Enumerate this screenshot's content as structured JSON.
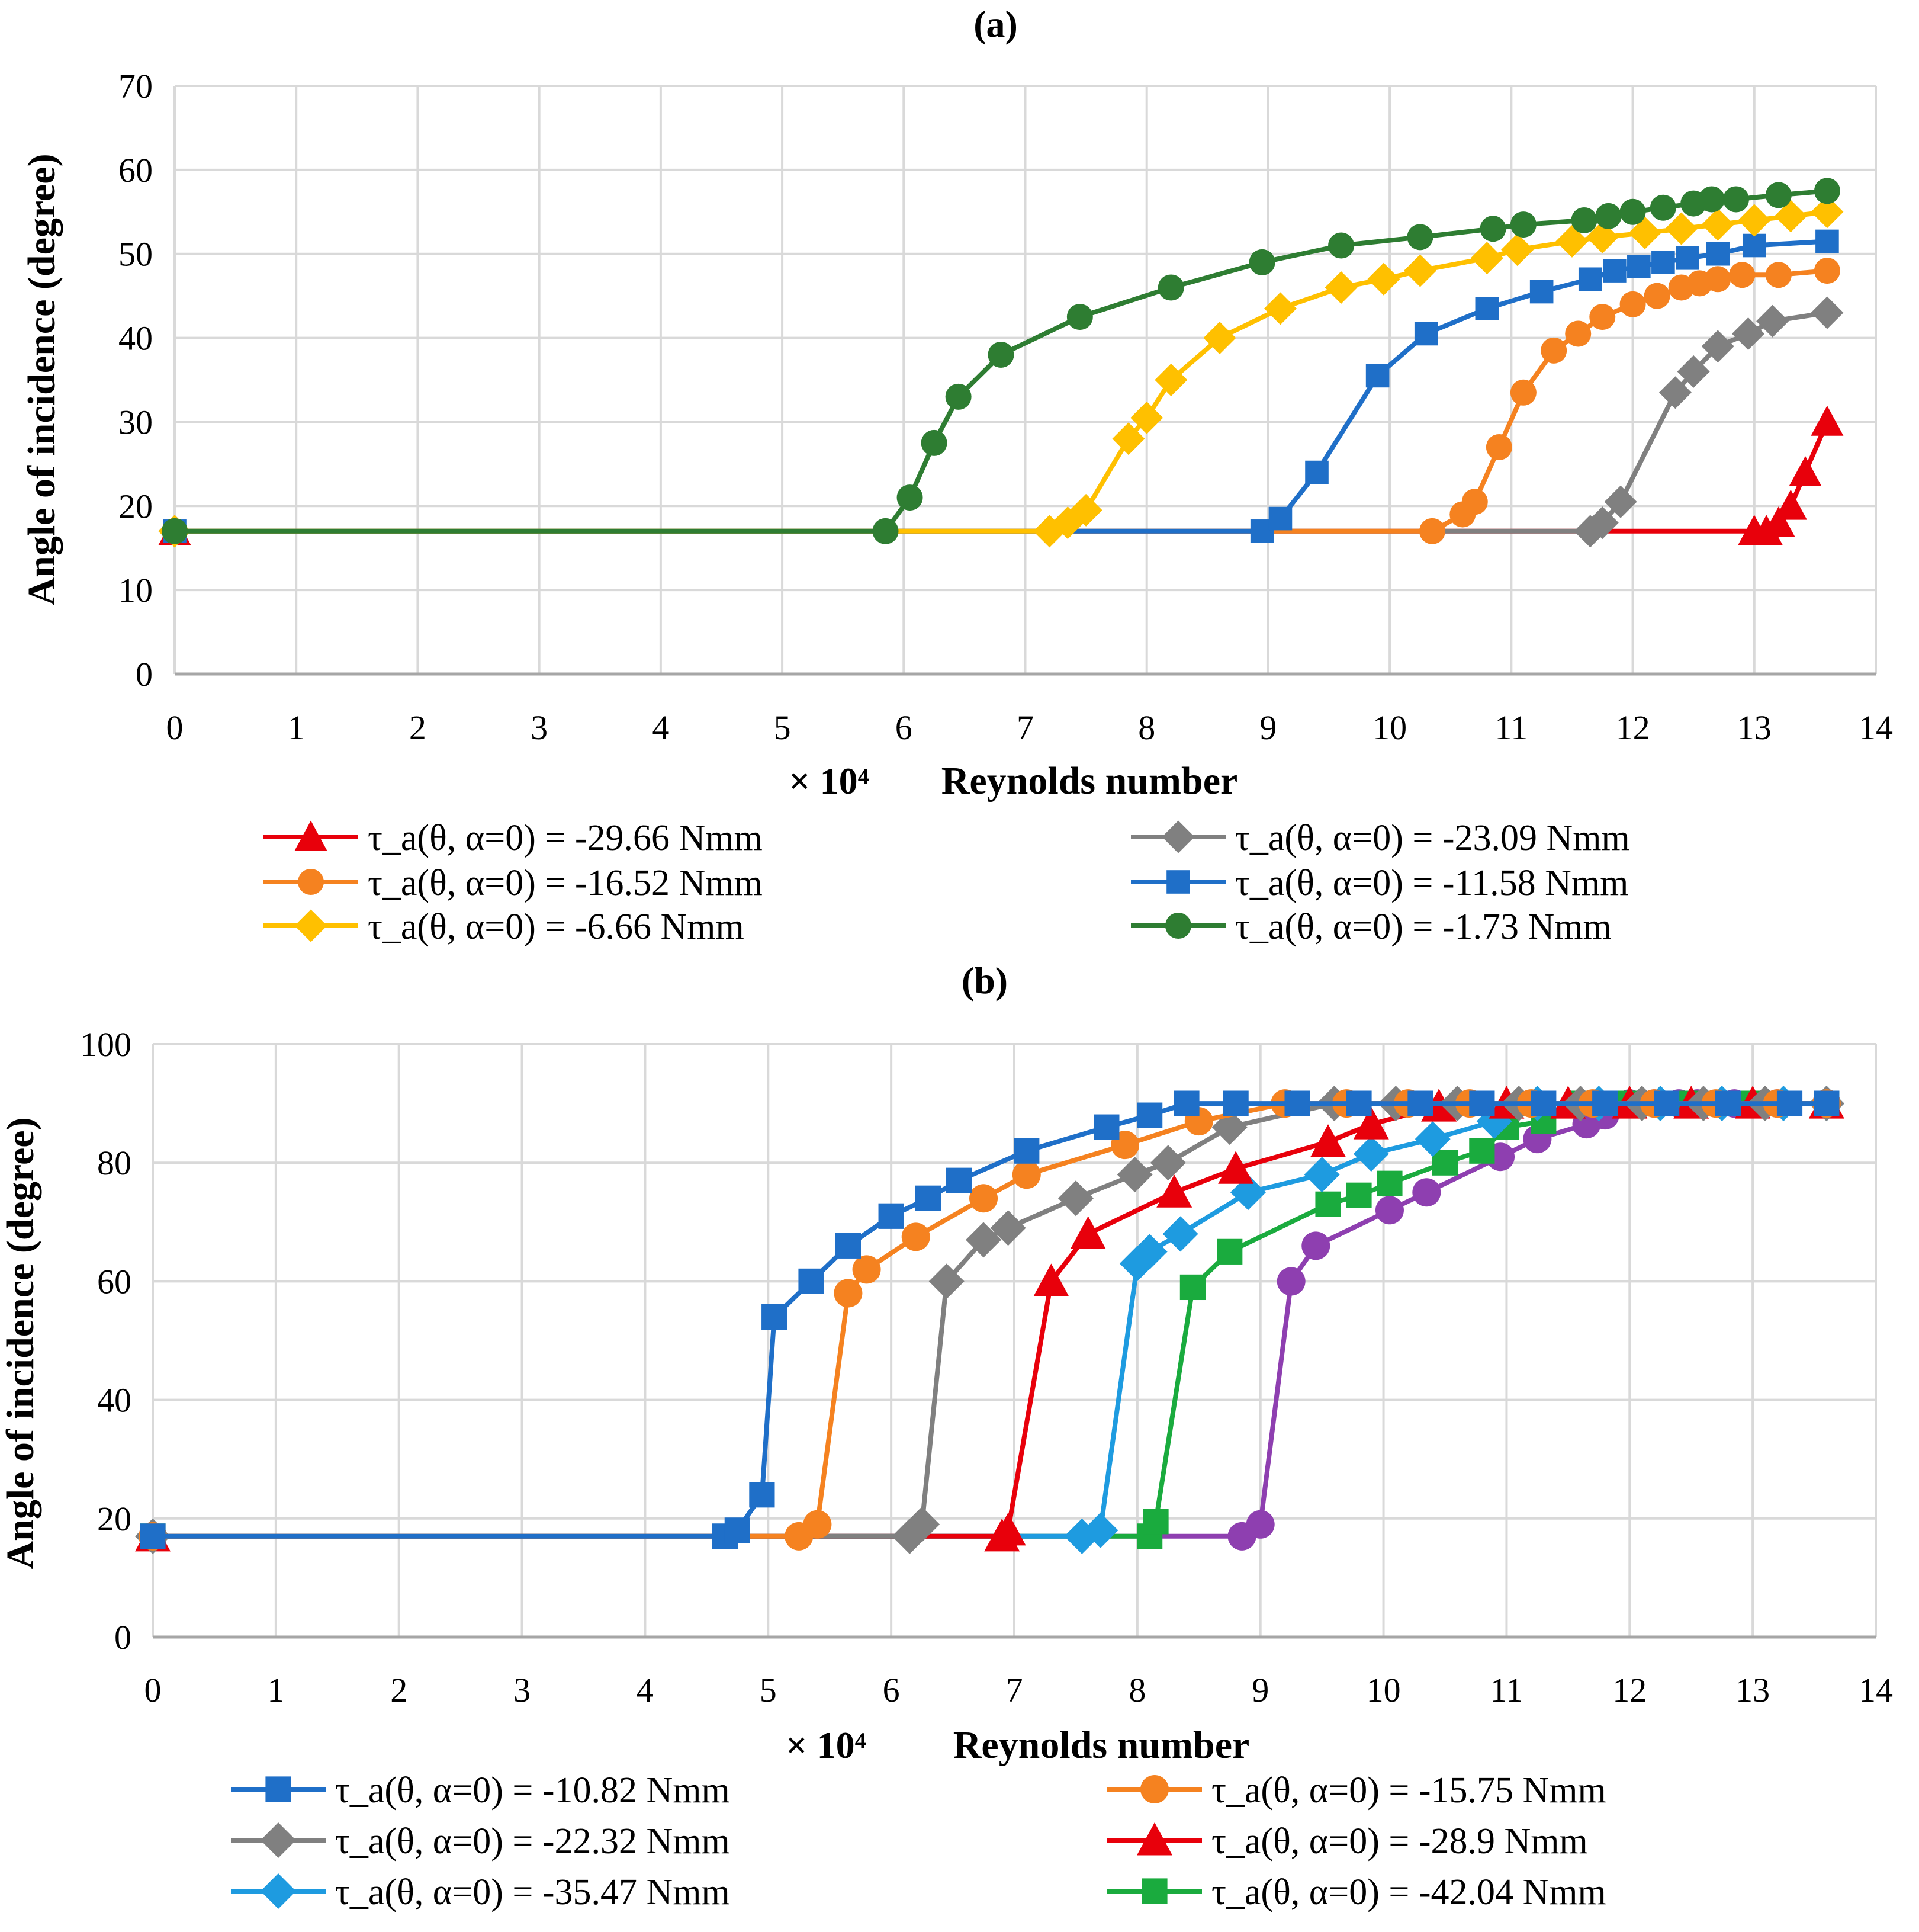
{
  "chart_data": [
    {
      "id": "a",
      "type": "line",
      "panel_label": "(a)",
      "title": "",
      "xlabel": "Reynolds number",
      "xlabel_prefix": "× 10⁴",
      "ylabel": "Angle of incidence (degree)",
      "xlim": [
        0,
        14
      ],
      "ylim": [
        0,
        70
      ],
      "xticks": [
        0,
        1,
        2,
        3,
        4,
        5,
        6,
        7,
        8,
        9,
        10,
        11,
        12,
        13,
        14
      ],
      "yticks": [
        0,
        10,
        20,
        30,
        40,
        50,
        60,
        70
      ],
      "grid": true,
      "legend_position": "bottom",
      "series": [
        {
          "name": "τ_a(θ, α=0) = -29.66 Nmm",
          "color": "#e8000b",
          "marker": "triangle",
          "x": [
            0,
            13.0,
            13.1,
            13.2,
            13.3,
            13.42,
            13.6
          ],
          "y": [
            17,
            17,
            17,
            18,
            20,
            24,
            30
          ]
        },
        {
          "name": "τ_a(θ, α=0) = -23.09 Nmm",
          "color": "#808080",
          "marker": "diamond",
          "x": [
            0,
            11.65,
            11.75,
            11.9,
            12.35,
            12.5,
            12.7,
            12.95,
            13.15,
            13.6
          ],
          "y": [
            17,
            17,
            18,
            20.5,
            33.5,
            36,
            39,
            40.5,
            42,
            43
          ]
        },
        {
          "name": "τ_a(θ, α=0) = -16.52 Nmm",
          "color": "#f58220",
          "marker": "circle",
          "x": [
            0,
            10.35,
            10.6,
            10.7,
            10.9,
            11.1,
            11.35,
            11.55,
            11.75,
            12.0,
            12.2,
            12.4,
            12.55,
            12.7,
            12.9,
            13.2,
            13.6
          ],
          "y": [
            17,
            17,
            19,
            20.5,
            27,
            33.5,
            38.5,
            40.5,
            42.5,
            44,
            45,
            46,
            46.5,
            47,
            47.5,
            47.5,
            48
          ]
        },
        {
          "name": "τ_a(θ, α=0) = -11.58 Nmm",
          "color": "#1f6fc8",
          "marker": "square",
          "x": [
            0,
            8.95,
            9.1,
            9.4,
            9.9,
            10.3,
            10.8,
            11.25,
            11.65,
            11.85,
            12.05,
            12.25,
            12.45,
            12.7,
            13.0,
            13.6
          ],
          "y": [
            17,
            17,
            18.5,
            24,
            35.5,
            40.5,
            43.5,
            45.5,
            47,
            48,
            48.5,
            49,
            49.5,
            50,
            51,
            51.5
          ]
        },
        {
          "name": "τ_a(θ, α=0) = -6.66 Nmm",
          "color": "#ffc000",
          "marker": "diamond",
          "x": [
            0,
            7.2,
            7.35,
            7.5,
            7.85,
            8.0,
            8.2,
            8.6,
            9.1,
            9.6,
            9.95,
            10.25,
            10.8,
            11.05,
            11.5,
            11.75,
            12.1,
            12.4,
            12.7,
            13.0,
            13.3,
            13.6
          ],
          "y": [
            17,
            17,
            18,
            19.5,
            28,
            30.5,
            35,
            40,
            43.5,
            46,
            47,
            48,
            49.5,
            50.5,
            51.5,
            52,
            52.5,
            53,
            53.5,
            54,
            54.5,
            55
          ]
        },
        {
          "name": "τ_a(θ, α=0) = -1.73 Nmm",
          "color": "#2e7d32",
          "marker": "circle",
          "x": [
            0,
            5.85,
            6.05,
            6.25,
            6.45,
            6.8,
            7.45,
            8.2,
            8.95,
            9.6,
            10.25,
            10.85,
            11.1,
            11.6,
            11.8,
            12.0,
            12.25,
            12.5,
            12.65,
            12.85,
            13.2,
            13.6
          ],
          "y": [
            17,
            17,
            21,
            27.5,
            33,
            38,
            42.5,
            46,
            49,
            51,
            52,
            53,
            53.5,
            54,
            54.5,
            55,
            55.5,
            56,
            56.5,
            56.5,
            57,
            57.5
          ]
        }
      ]
    },
    {
      "id": "b",
      "type": "line",
      "panel_label": "(b)",
      "title": "",
      "xlabel": "Reynolds number",
      "xlabel_prefix": "× 10⁴",
      "ylabel": "Angle of incidence (degree)",
      "xlim": [
        0,
        14
      ],
      "ylim": [
        0,
        100
      ],
      "xticks": [
        0,
        1,
        2,
        3,
        4,
        5,
        6,
        7,
        8,
        9,
        10,
        11,
        12,
        13,
        14
      ],
      "yticks": [
        0,
        20,
        40,
        60,
        80,
        100
      ],
      "grid": true,
      "legend_position": "bottom",
      "series": [
        {
          "name": "τ_a(θ, α=0) = -10.82 Nmm",
          "color": "#1f6fc8",
          "marker": "square",
          "x": [
            0,
            4.65,
            4.75,
            4.95,
            5.05,
            5.35,
            5.65,
            6.0,
            6.3,
            6.55,
            7.1,
            7.75,
            8.1,
            8.4,
            8.8,
            9.3,
            9.8,
            10.3,
            10.8,
            11.3,
            11.8,
            12.3,
            12.8,
            13.3,
            13.6
          ],
          "y": [
            17,
            17,
            18,
            24,
            54,
            60,
            66,
            71,
            74,
            77,
            82,
            86,
            88,
            90,
            90,
            90,
            90,
            90,
            90,
            90,
            90,
            90,
            90,
            90,
            90
          ]
        },
        {
          "name": "τ_a(θ, α=0) = -15.75 Nmm",
          "color": "#f58220",
          "marker": "circle",
          "x": [
            0,
            5.25,
            5.4,
            5.65,
            5.8,
            6.2,
            6.75,
            7.1,
            7.9,
            8.5,
            9.2,
            9.7,
            10.2,
            10.7,
            11.2,
            11.7,
            12.2,
            12.7,
            13.2,
            13.6
          ],
          "y": [
            17,
            17,
            19,
            58,
            62,
            67.5,
            74,
            78,
            83,
            87,
            90,
            90,
            90,
            90,
            90,
            90,
            90,
            90,
            90,
            90
          ]
        },
        {
          "name": "τ_a(θ, α=0) = -22.32 Nmm",
          "color": "#808080",
          "marker": "diamond",
          "x": [
            0,
            6.15,
            6.25,
            6.45,
            6.75,
            6.95,
            7.5,
            7.98,
            8.25,
            8.75,
            9.6,
            10.1,
            10.6,
            11.1,
            11.6,
            12.1,
            12.6,
            13.1,
            13.6
          ],
          "y": [
            17,
            17,
            19,
            60,
            67,
            69,
            74,
            78,
            80,
            86,
            90,
            90,
            90,
            90,
            90,
            90,
            90,
            90,
            90
          ]
        },
        {
          "name": "τ_a(θ, α=0) = -28.9 Nmm",
          "color": "#e8000b",
          "marker": "triangle",
          "x": [
            0,
            6.9,
            6.95,
            7.3,
            7.6,
            8.3,
            8.8,
            9.55,
            9.9,
            10.45,
            11.0,
            11.5,
            12.0,
            12.5,
            13.0,
            13.6
          ],
          "y": [
            17,
            17,
            18,
            60,
            68,
            75,
            79,
            83.5,
            86.5,
            89.5,
            90,
            90,
            90,
            90,
            90,
            90
          ]
        },
        {
          "name": "τ_a(θ, α=0) = -35.47 Nmm",
          "color": "#1e9be0",
          "marker": "diamond",
          "x": [
            0,
            7.55,
            7.7,
            8.0,
            8.1,
            8.35,
            8.9,
            9.5,
            9.9,
            10.4,
            10.9,
            11.25,
            11.75,
            12.25,
            12.75,
            13.25,
            13.6
          ],
          "y": [
            17,
            17,
            18,
            63,
            65,
            68,
            75,
            78,
            81.5,
            84,
            87,
            90,
            90,
            90,
            90,
            90,
            90
          ]
        },
        {
          "name": "τ_a(θ, α=0) = -42.04 Nmm",
          "color": "#1aab3e",
          "marker": "square",
          "x": [
            0,
            8.1,
            8.15,
            8.45,
            8.75,
            9.55,
            9.8,
            10.05,
            10.5,
            10.8,
            11.0,
            11.3,
            11.6,
            12.0,
            12.5,
            13.0,
            13.6
          ],
          "y": [
            17,
            17,
            19.5,
            59,
            65,
            73,
            74.5,
            76.5,
            80,
            82,
            86,
            87,
            90,
            90,
            90,
            90,
            90
          ]
        },
        {
          "name": "",
          "color": "#8e3fb0",
          "marker": "circle",
          "x": [
            0,
            8.85,
            9.0,
            9.25,
            9.45,
            10.05,
            10.35,
            10.95,
            11.25,
            11.65,
            11.8,
            12.0,
            12.2,
            12.4,
            12.55,
            12.85,
            13.2,
            13.6
          ],
          "y": [
            17,
            17,
            19,
            60,
            66,
            72,
            75,
            81,
            84,
            86.5,
            88,
            90,
            90,
            90,
            90,
            90,
            90,
            90
          ]
        }
      ]
    }
  ]
}
